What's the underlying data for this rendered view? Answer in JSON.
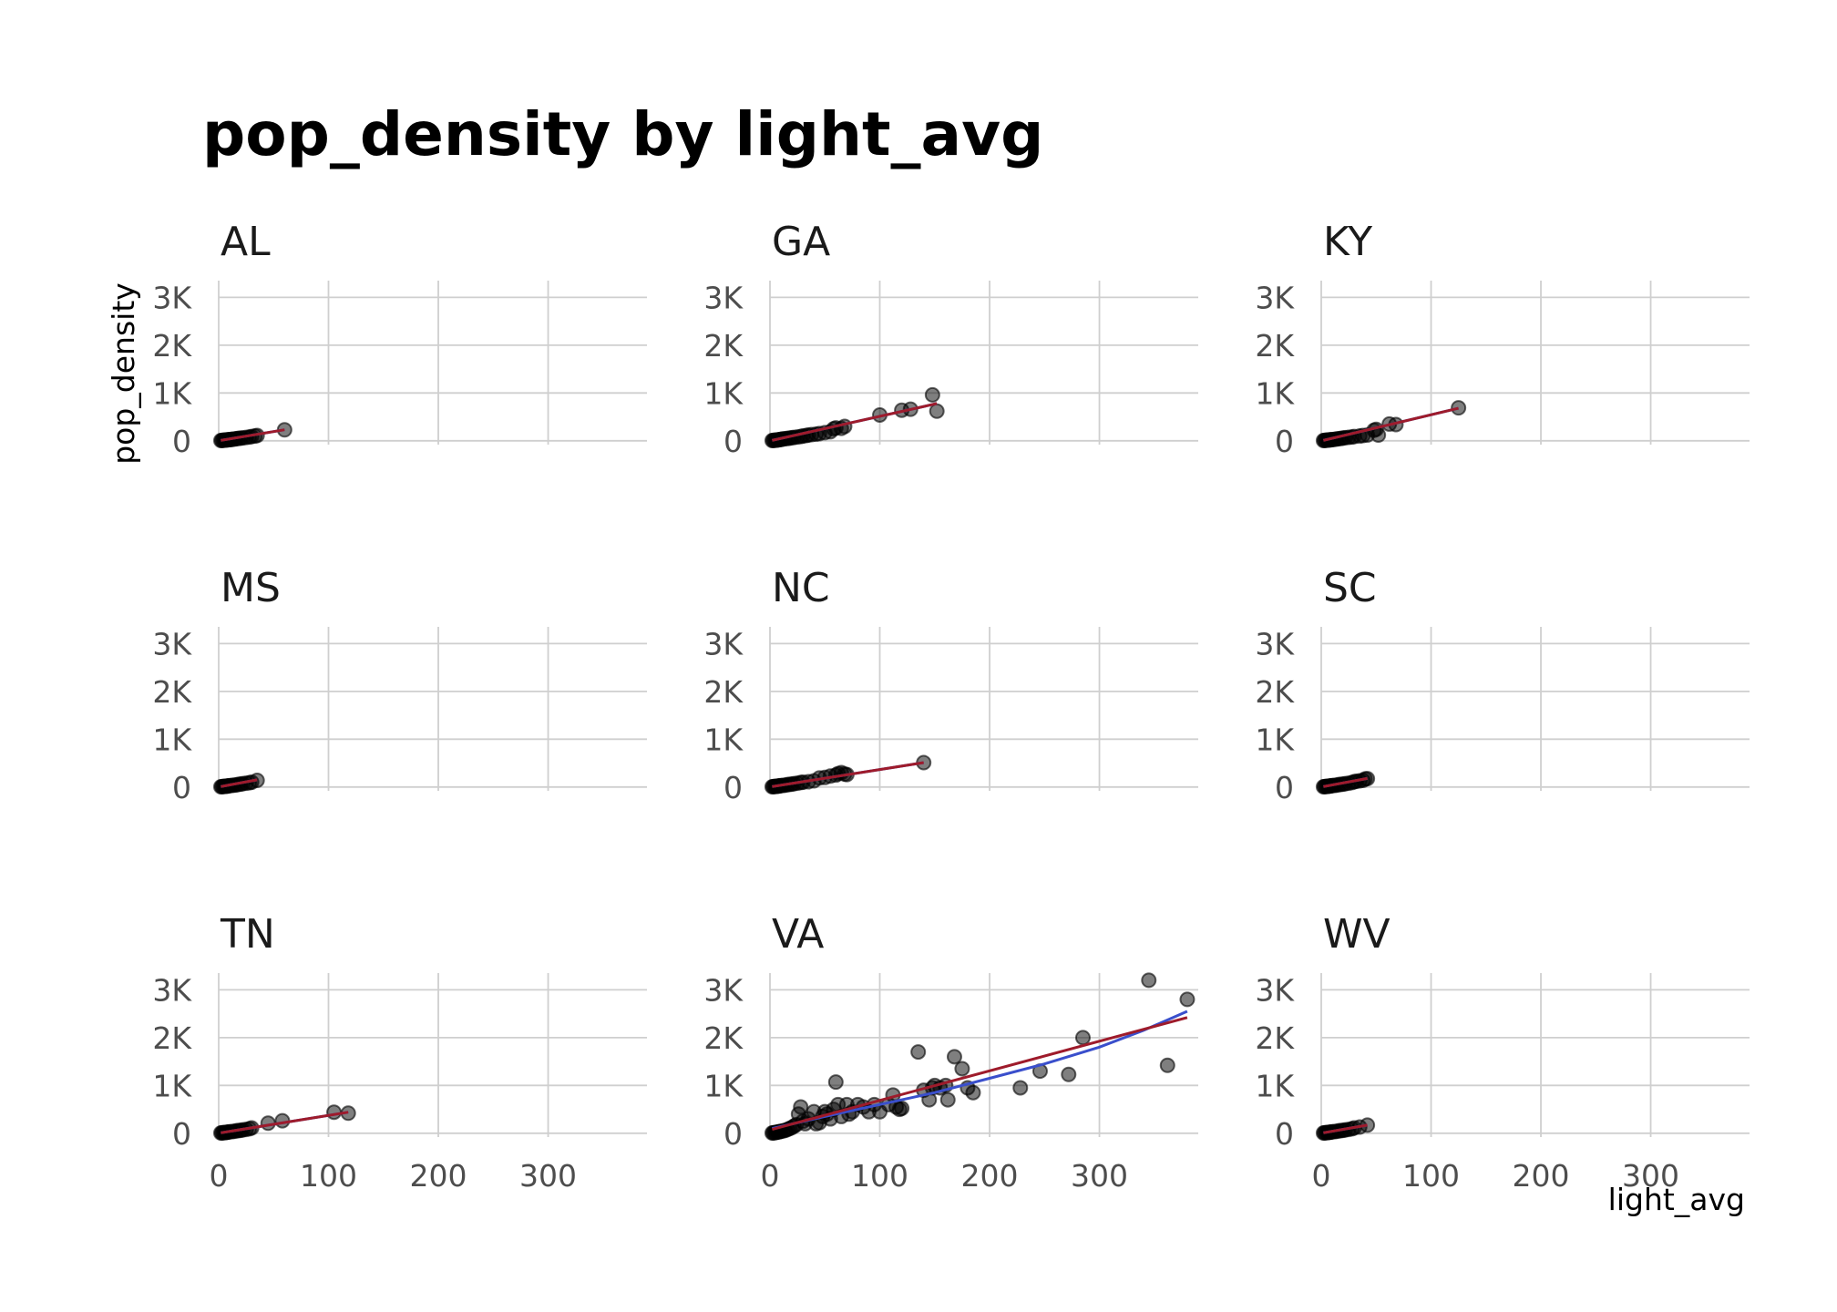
{
  "chart_data": {
    "type": "scatter",
    "title": "pop_density by light_avg",
    "xlabel": "light_avg",
    "ylabel": "pop_density",
    "xlim": [
      0,
      390
    ],
    "ylim": [
      -80,
      3350
    ],
    "x_ticks": [
      0,
      100,
      200,
      300
    ],
    "x_tick_labels": [
      "0",
      "100",
      "200",
      "300"
    ],
    "y_ticks": [
      0,
      1000,
      2000,
      3000
    ],
    "y_tick_labels": [
      "0",
      "1K",
      "2K",
      "3K"
    ],
    "grid": true,
    "legend": "none",
    "fit_line_colors": {
      "loess": "#3a4fcc",
      "linear": "#9e1b2b"
    },
    "panels": [
      {
        "name": "AL",
        "points": [
          [
            2,
            5
          ],
          [
            3,
            8
          ],
          [
            4,
            10
          ],
          [
            5,
            12
          ],
          [
            6,
            15
          ],
          [
            7,
            18
          ],
          [
            8,
            20
          ],
          [
            9,
            22
          ],
          [
            10,
            25
          ],
          [
            11,
            28
          ],
          [
            12,
            30
          ],
          [
            13,
            35
          ],
          [
            15,
            40
          ],
          [
            16,
            45
          ],
          [
            18,
            50
          ],
          [
            20,
            55
          ],
          [
            22,
            60
          ],
          [
            25,
            70
          ],
          [
            28,
            80
          ],
          [
            30,
            90
          ],
          [
            33,
            100
          ],
          [
            35,
            110
          ],
          [
            60,
            230
          ]
        ],
        "fit": [
          [
            2,
            10
          ],
          [
            60,
            230
          ]
        ]
      },
      {
        "name": "GA",
        "points": [
          [
            2,
            5
          ],
          [
            3,
            8
          ],
          [
            4,
            10
          ],
          [
            5,
            12
          ],
          [
            6,
            15
          ],
          [
            7,
            18
          ],
          [
            8,
            22
          ],
          [
            9,
            25
          ],
          [
            10,
            30
          ],
          [
            11,
            35
          ],
          [
            12,
            40
          ],
          [
            14,
            45
          ],
          [
            16,
            50
          ],
          [
            18,
            55
          ],
          [
            20,
            65
          ],
          [
            22,
            70
          ],
          [
            25,
            80
          ],
          [
            28,
            90
          ],
          [
            30,
            100
          ],
          [
            33,
            110
          ],
          [
            35,
            120
          ],
          [
            38,
            130
          ],
          [
            42,
            140
          ],
          [
            45,
            150
          ],
          [
            50,
            170
          ],
          [
            55,
            190
          ],
          [
            58,
            250
          ],
          [
            60,
            270
          ],
          [
            65,
            260
          ],
          [
            68,
            300
          ],
          [
            100,
            540
          ],
          [
            120,
            640
          ],
          [
            128,
            660
          ],
          [
            148,
            960
          ],
          [
            152,
            620
          ]
        ],
        "fit": [
          [
            2,
            10
          ],
          [
            152,
            780
          ]
        ]
      },
      {
        "name": "KY",
        "points": [
          [
            2,
            5
          ],
          [
            3,
            8
          ],
          [
            4,
            10
          ],
          [
            5,
            12
          ],
          [
            6,
            15
          ],
          [
            7,
            18
          ],
          [
            8,
            20
          ],
          [
            9,
            22
          ],
          [
            10,
            25
          ],
          [
            12,
            30
          ],
          [
            14,
            38
          ],
          [
            16,
            45
          ],
          [
            18,
            50
          ],
          [
            20,
            58
          ],
          [
            22,
            65
          ],
          [
            25,
            72
          ],
          [
            28,
            80
          ],
          [
            30,
            90
          ],
          [
            35,
            100
          ],
          [
            38,
            110
          ],
          [
            42,
            120
          ],
          [
            48,
            220
          ],
          [
            50,
            240
          ],
          [
            52,
            120
          ],
          [
            62,
            350
          ],
          [
            68,
            340
          ],
          [
            125,
            690
          ]
        ],
        "fit": [
          [
            2,
            10
          ],
          [
            125,
            680
          ]
        ]
      },
      {
        "name": "MS",
        "points": [
          [
            2,
            5
          ],
          [
            3,
            8
          ],
          [
            4,
            10
          ],
          [
            5,
            12
          ],
          [
            6,
            15
          ],
          [
            7,
            18
          ],
          [
            8,
            20
          ],
          [
            9,
            25
          ],
          [
            10,
            28
          ],
          [
            12,
            35
          ],
          [
            14,
            40
          ],
          [
            16,
            45
          ],
          [
            18,
            55
          ],
          [
            20,
            60
          ],
          [
            22,
            70
          ],
          [
            25,
            80
          ],
          [
            28,
            90
          ],
          [
            30,
            100
          ],
          [
            35,
            140
          ]
        ],
        "fit": [
          [
            2,
            10
          ],
          [
            35,
            150
          ]
        ]
      },
      {
        "name": "NC",
        "points": [
          [
            2,
            5
          ],
          [
            3,
            8
          ],
          [
            4,
            10
          ],
          [
            5,
            12
          ],
          [
            6,
            15
          ],
          [
            7,
            18
          ],
          [
            8,
            22
          ],
          [
            9,
            25
          ],
          [
            10,
            30
          ],
          [
            12,
            35
          ],
          [
            14,
            40
          ],
          [
            16,
            50
          ],
          [
            18,
            55
          ],
          [
            20,
            60
          ],
          [
            22,
            70
          ],
          [
            25,
            80
          ],
          [
            28,
            95
          ],
          [
            30,
            100
          ],
          [
            35,
            110
          ],
          [
            40,
            130
          ],
          [
            45,
            190
          ],
          [
            50,
            200
          ],
          [
            55,
            230
          ],
          [
            60,
            250
          ],
          [
            62,
            280
          ],
          [
            65,
            300
          ],
          [
            68,
            270
          ],
          [
            70,
            260
          ],
          [
            140,
            510
          ]
        ],
        "fit": [
          [
            2,
            10
          ],
          [
            140,
            510
          ]
        ]
      },
      {
        "name": "SC",
        "points": [
          [
            2,
            5
          ],
          [
            3,
            8
          ],
          [
            4,
            10
          ],
          [
            5,
            12
          ],
          [
            6,
            15
          ],
          [
            7,
            18
          ],
          [
            8,
            22
          ],
          [
            9,
            25
          ],
          [
            10,
            30
          ],
          [
            12,
            35
          ],
          [
            14,
            40
          ],
          [
            16,
            50
          ],
          [
            18,
            55
          ],
          [
            20,
            60
          ],
          [
            22,
            70
          ],
          [
            25,
            80
          ],
          [
            28,
            95
          ],
          [
            30,
            110
          ],
          [
            32,
            120
          ],
          [
            35,
            130
          ],
          [
            38,
            140
          ],
          [
            40,
            170
          ],
          [
            42,
            175
          ]
        ],
        "fit": [
          [
            2,
            10
          ],
          [
            42,
            180
          ]
        ]
      },
      {
        "name": "TN",
        "points": [
          [
            2,
            5
          ],
          [
            3,
            8
          ],
          [
            4,
            10
          ],
          [
            5,
            12
          ],
          [
            6,
            15
          ],
          [
            7,
            18
          ],
          [
            8,
            22
          ],
          [
            9,
            25
          ],
          [
            10,
            30
          ],
          [
            12,
            35
          ],
          [
            14,
            40
          ],
          [
            16,
            50
          ],
          [
            18,
            55
          ],
          [
            20,
            60
          ],
          [
            22,
            70
          ],
          [
            25,
            80
          ],
          [
            28,
            95
          ],
          [
            30,
            110
          ],
          [
            45,
            210
          ],
          [
            58,
            260
          ],
          [
            105,
            440
          ],
          [
            118,
            420
          ]
        ],
        "fit": [
          [
            2,
            10
          ],
          [
            118,
            440
          ]
        ]
      },
      {
        "name": "VA",
        "points": [
          [
            2,
            5
          ],
          [
            3,
            8
          ],
          [
            4,
            10
          ],
          [
            5,
            15
          ],
          [
            6,
            20
          ],
          [
            7,
            25
          ],
          [
            8,
            30
          ],
          [
            9,
            35
          ],
          [
            10,
            40
          ],
          [
            12,
            50
          ],
          [
            14,
            60
          ],
          [
            16,
            80
          ],
          [
            18,
            100
          ],
          [
            20,
            120
          ],
          [
            22,
            150
          ],
          [
            24,
            180
          ],
          [
            26,
            400
          ],
          [
            28,
            550
          ],
          [
            30,
            250
          ],
          [
            32,
            200
          ],
          [
            35,
            300
          ],
          [
            40,
            450
          ],
          [
            42,
            200
          ],
          [
            45,
            220
          ],
          [
            48,
            350
          ],
          [
            50,
            450
          ],
          [
            52,
            400
          ],
          [
            55,
            300
          ],
          [
            58,
            500
          ],
          [
            60,
            1070
          ],
          [
            62,
            600
          ],
          [
            65,
            350
          ],
          [
            70,
            600
          ],
          [
            72,
            400
          ],
          [
            75,
            450
          ],
          [
            80,
            600
          ],
          [
            85,
            550
          ],
          [
            90,
            450
          ],
          [
            95,
            600
          ],
          [
            100,
            450
          ],
          [
            108,
            600
          ],
          [
            112,
            800
          ],
          [
            115,
            550
          ],
          [
            118,
            500
          ],
          [
            120,
            520
          ],
          [
            135,
            1700
          ],
          [
            140,
            900
          ],
          [
            145,
            700
          ],
          [
            148,
            950
          ],
          [
            150,
            1000
          ],
          [
            155,
            950
          ],
          [
            160,
            1000
          ],
          [
            162,
            700
          ],
          [
            168,
            1600
          ],
          [
            175,
            1350
          ],
          [
            180,
            950
          ],
          [
            185,
            850
          ],
          [
            228,
            950
          ],
          [
            246,
            1300
          ],
          [
            272,
            1230
          ],
          [
            285,
            2000
          ],
          [
            345,
            3200
          ],
          [
            362,
            1420
          ],
          [
            380,
            2800
          ]
        ],
        "fit": [
          [
            2,
            100
          ],
          [
            50,
            350
          ],
          [
            100,
            600
          ],
          [
            150,
            850
          ],
          [
            200,
            1150
          ],
          [
            250,
            1450
          ],
          [
            300,
            1800
          ],
          [
            340,
            2150
          ],
          [
            380,
            2550
          ]
        ],
        "fit_linear": [
          [
            2,
            80
          ],
          [
            380,
            2420
          ]
        ]
      },
      {
        "name": "WV",
        "points": [
          [
            2,
            5
          ],
          [
            3,
            8
          ],
          [
            4,
            10
          ],
          [
            5,
            12
          ],
          [
            6,
            15
          ],
          [
            7,
            18
          ],
          [
            8,
            22
          ],
          [
            9,
            25
          ],
          [
            10,
            30
          ],
          [
            12,
            35
          ],
          [
            14,
            40
          ],
          [
            16,
            50
          ],
          [
            18,
            55
          ],
          [
            20,
            60
          ],
          [
            22,
            70
          ],
          [
            25,
            80
          ],
          [
            28,
            95
          ],
          [
            30,
            110
          ],
          [
            35,
            130
          ],
          [
            42,
            170
          ]
        ],
        "fit": [
          [
            2,
            10
          ],
          [
            42,
            170
          ]
        ]
      }
    ]
  }
}
